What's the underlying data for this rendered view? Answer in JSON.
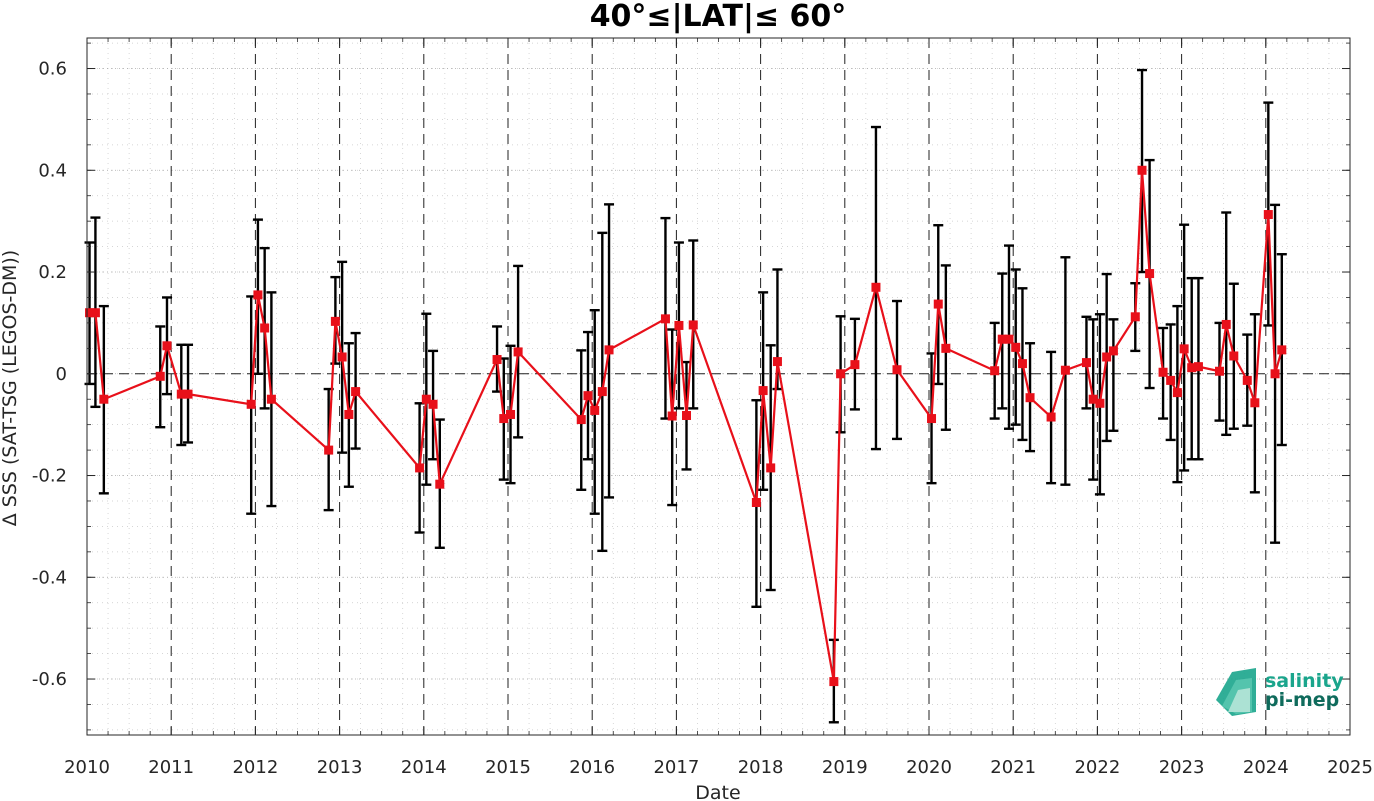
{
  "chart_data": {
    "type": "line",
    "title": "40°≤|LAT|≤ 60°",
    "xlabel": "Date",
    "ylabel": "Δ SSS (SAT-TSG (LEGOS-DM))",
    "xlim": [
      2010,
      2025
    ],
    "ylim": [
      -0.71,
      0.66
    ],
    "x_ticks": [
      "2010",
      "2011",
      "2012",
      "2013",
      "2014",
      "2015",
      "2016",
      "2017",
      "2018",
      "2019",
      "2020",
      "2021",
      "2022",
      "2023",
      "2024",
      "2025"
    ],
    "y_ticks": [
      -0.6,
      -0.4,
      -0.2,
      0,
      0.2,
      0.4,
      0.6
    ],
    "y_tick_labels": [
      "-0.6",
      "-0.4",
      "-0.2",
      "0",
      "0.2",
      "0.4",
      "0.6"
    ],
    "grid": "dotted",
    "year_separators": "dashed",
    "zero_line": "dashed",
    "series": [
      {
        "color": "#e8101a",
        "error_bar_color": "#000000",
        "marker": "square",
        "x": [
          2010.03,
          2010.1,
          2010.2,
          2010.87,
          2010.95,
          2011.12,
          2011.2,
          2011.95,
          2012.03,
          2012.11,
          2012.19,
          2012.87,
          2012.95,
          2013.03,
          2013.11,
          2013.19,
          2013.95,
          2014.03,
          2014.11,
          2014.19,
          2014.87,
          2014.95,
          2015.03,
          2015.12,
          2015.87,
          2015.95,
          2016.03,
          2016.12,
          2016.2,
          2016.87,
          2016.95,
          2017.03,
          2017.12,
          2017.2,
          2017.95,
          2018.03,
          2018.12,
          2018.2,
          2018.87,
          2018.95,
          2019.12,
          2019.37,
          2019.62,
          2020.03,
          2020.11,
          2020.2,
          2020.78,
          2020.87,
          2020.95,
          2021.03,
          2021.11,
          2021.2,
          2021.45,
          2021.62,
          2021.87,
          2021.95,
          2022.03,
          2022.11,
          2022.19,
          2022.45,
          2022.53,
          2022.62,
          2022.78,
          2022.87,
          2022.95,
          2023.03,
          2023.12,
          2023.2,
          2023.45,
          2023.53,
          2023.62,
          2023.78,
          2023.87,
          2024.03,
          2024.11,
          2024.19
        ],
        "y": [
          0.12,
          0.12,
          -0.05,
          -0.005,
          0.055,
          -0.04,
          -0.04,
          -0.06,
          0.155,
          0.09,
          -0.05,
          -0.15,
          0.103,
          0.033,
          -0.08,
          -0.035,
          -0.185,
          -0.05,
          -0.06,
          -0.217,
          0.028,
          -0.088,
          -0.08,
          0.043,
          -0.09,
          -0.043,
          -0.072,
          -0.035,
          0.047,
          0.108,
          -0.083,
          0.095,
          -0.082,
          0.096,
          -0.253,
          -0.033,
          -0.185,
          0.024,
          -0.605,
          0.0,
          0.018,
          0.17,
          0.008,
          -0.088,
          0.137,
          0.05,
          0.006,
          0.068,
          0.068,
          0.052,
          0.02,
          -0.047,
          -0.085,
          0.007,
          0.022,
          -0.05,
          -0.058,
          0.033,
          0.045,
          0.112,
          0.4,
          0.197,
          0.003,
          -0.013,
          -0.037,
          0.049,
          0.012,
          0.014,
          0.005,
          0.097,
          0.035,
          -0.013,
          -0.057,
          0.313,
          0.0,
          0.047
        ],
        "err_low": [
          -0.02,
          -0.065,
          -0.235,
          -0.105,
          -0.04,
          -0.14,
          -0.135,
          -0.275,
          0.0,
          -0.068,
          -0.26,
          -0.268,
          0.02,
          -0.155,
          -0.222,
          -0.147,
          -0.312,
          -0.218,
          -0.168,
          -0.342,
          -0.035,
          -0.208,
          -0.215,
          -0.125,
          -0.228,
          -0.168,
          -0.275,
          -0.348,
          -0.243,
          -0.088,
          -0.258,
          -0.068,
          -0.188,
          -0.068,
          -0.458,
          -0.228,
          -0.425,
          -0.03,
          -0.685,
          -0.115,
          -0.07,
          -0.148,
          -0.128,
          -0.215,
          -0.02,
          -0.11,
          -0.088,
          -0.068,
          -0.108,
          -0.1,
          -0.13,
          -0.152,
          -0.215,
          -0.218,
          -0.068,
          -0.208,
          -0.237,
          -0.132,
          -0.112,
          0.045,
          0.2,
          -0.028,
          -0.088,
          -0.13,
          -0.213,
          -0.19,
          -0.168,
          -0.168,
          -0.092,
          -0.12,
          -0.108,
          -0.102,
          -0.233,
          0.095,
          -0.332,
          -0.14
        ],
        "err_high": [
          0.258,
          0.307,
          0.133,
          0.093,
          0.15,
          0.057,
          0.057,
          0.152,
          0.303,
          0.247,
          0.16,
          -0.03,
          0.19,
          0.22,
          0.06,
          0.08,
          -0.058,
          0.118,
          0.045,
          -0.09,
          0.093,
          0.03,
          0.055,
          0.212,
          0.046,
          0.082,
          0.125,
          0.277,
          0.333,
          0.306,
          0.087,
          0.258,
          0.023,
          0.262,
          -0.052,
          0.16,
          0.056,
          0.205,
          -0.523,
          0.113,
          0.108,
          0.485,
          0.143,
          0.04,
          0.292,
          0.213,
          0.1,
          0.197,
          0.252,
          0.205,
          0.168,
          0.06,
          0.043,
          0.229,
          0.112,
          0.107,
          0.117,
          0.196,
          0.107,
          0.178,
          0.597,
          0.42,
          0.09,
          0.097,
          0.133,
          0.293,
          0.188,
          0.188,
          0.1,
          0.317,
          0.177,
          0.077,
          0.117,
          0.533,
          0.332,
          0.235
        ]
      }
    ]
  },
  "logo": {
    "line1": "salinity",
    "line2": "pi-mep"
  }
}
